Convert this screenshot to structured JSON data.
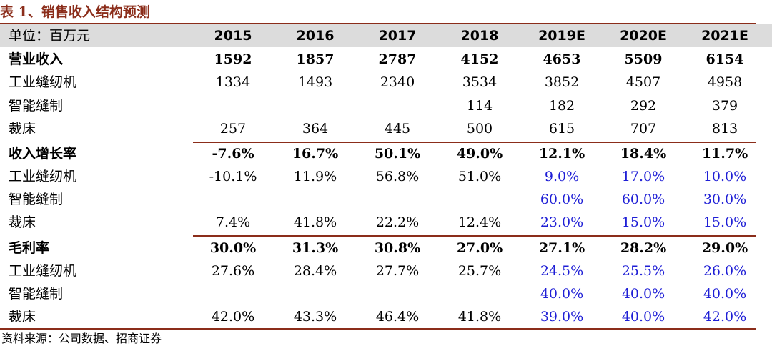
{
  "title": "表 1、销售收入结构预测",
  "header": {
    "unit_label": "单位：百万元",
    "years": [
      "2015",
      "2016",
      "2017",
      "2018",
      "2019E",
      "2020E",
      "2021E"
    ]
  },
  "rows": [
    {
      "label": "营业收入",
      "values": [
        "1592",
        "1857",
        "2787",
        "4152",
        "4653",
        "5509",
        "6154"
      ]
    },
    {
      "label": "工业缝纫机",
      "values": [
        "1334",
        "1493",
        "2340",
        "3534",
        "3852",
        "4507",
        "4958"
      ]
    },
    {
      "label": "智能缝制",
      "values": [
        "",
        "",
        "",
        "114",
        "182",
        "292",
        "379"
      ]
    },
    {
      "label": "裁床",
      "values": [
        "257",
        "364",
        "445",
        "500",
        "615",
        "707",
        "813"
      ]
    },
    {
      "label": "收入增长率",
      "values": [
        "-7.6%",
        "16.7%",
        "50.1%",
        "49.0%",
        "12.1%",
        "18.4%",
        "11.7%"
      ]
    },
    {
      "label": "工业缝纫机",
      "values": [
        "-10.1%",
        "11.9%",
        "56.8%",
        "51.0%",
        "9.0%",
        "17.0%",
        "10.0%"
      ]
    },
    {
      "label": "智能缝制",
      "values": [
        "",
        "",
        "",
        "",
        "60.0%",
        "60.0%",
        "30.0%"
      ]
    },
    {
      "label": "裁床",
      "values": [
        "7.4%",
        "41.8%",
        "22.2%",
        "12.4%",
        "23.0%",
        "15.0%",
        "15.0%"
      ]
    },
    {
      "label": "毛利率",
      "values": [
        "30.0%",
        "31.3%",
        "30.8%",
        "27.0%",
        "27.1%",
        "28.2%",
        "29.0%"
      ]
    },
    {
      "label": "工业缝纫机",
      "values": [
        "27.6%",
        "28.4%",
        "27.7%",
        "25.7%",
        "24.5%",
        "25.5%",
        "26.0%"
      ]
    },
    {
      "label": "智能缝制",
      "values": [
        "",
        "",
        "",
        "",
        "40.0%",
        "40.0%",
        "40.0%"
      ]
    },
    {
      "label": "裁床",
      "values": [
        "42.0%",
        "43.3%",
        "46.4%",
        "41.8%",
        "39.0%",
        "40.0%",
        "42.0%"
      ]
    }
  ],
  "source": "资料来源：公司数据、招商证券",
  "colors": {
    "accent": "#8b2d1a",
    "forecast_blue": "#1f1fd6",
    "header_bg": "#dcdcdc"
  }
}
